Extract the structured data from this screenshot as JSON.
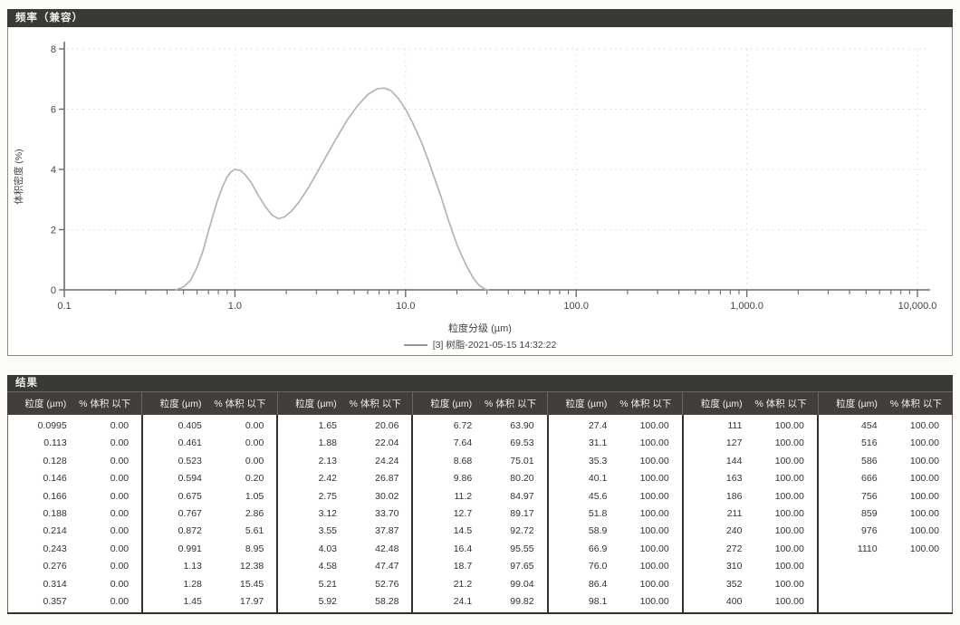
{
  "chart_panel": {
    "title": "频率（兼容）",
    "ylabel": "体积密度 (%)",
    "xlabel": "粒度分级 (µm)",
    "legend": "[3] 树脂-2021-05-15 14:32:22"
  },
  "chart_data": {
    "type": "line",
    "x_scale": "log",
    "title": "频率（兼容）",
    "xlabel": "粒度分级 (µm)",
    "ylabel": "体积密度 (%)",
    "xlim": [
      0.1,
      10000
    ],
    "ylim": [
      0,
      8
    ],
    "y_ticks": [
      0,
      2,
      4,
      6,
      8
    ],
    "x_ticks": [
      0.1,
      1.0,
      10.0,
      100.0,
      1000.0,
      10000.0
    ],
    "x_tick_labels": [
      "0.1",
      "1.0",
      "10.0",
      "100.0",
      "1,000.0",
      "10,000.0"
    ],
    "grid": "dashed",
    "legend_position": "bottom",
    "series": [
      {
        "name": "[3] 树脂-2021-05-15 14:32:22",
        "points": [
          [
            0.45,
            0
          ],
          [
            0.5,
            0.1
          ],
          [
            0.55,
            0.32
          ],
          [
            0.6,
            0.75
          ],
          [
            0.65,
            1.3
          ],
          [
            0.7,
            1.95
          ],
          [
            0.75,
            2.55
          ],
          [
            0.8,
            3.05
          ],
          [
            0.85,
            3.45
          ],
          [
            0.9,
            3.75
          ],
          [
            0.95,
            3.92
          ],
          [
            1.0,
            4.0
          ],
          [
            1.08,
            3.96
          ],
          [
            1.15,
            3.82
          ],
          [
            1.25,
            3.55
          ],
          [
            1.35,
            3.2
          ],
          [
            1.5,
            2.78
          ],
          [
            1.65,
            2.48
          ],
          [
            1.8,
            2.36
          ],
          [
            1.95,
            2.42
          ],
          [
            2.15,
            2.62
          ],
          [
            2.4,
            2.95
          ],
          [
            2.7,
            3.4
          ],
          [
            3.0,
            3.85
          ],
          [
            3.4,
            4.4
          ],
          [
            3.9,
            5.0
          ],
          [
            4.5,
            5.6
          ],
          [
            5.2,
            6.1
          ],
          [
            6.0,
            6.48
          ],
          [
            6.8,
            6.67
          ],
          [
            7.5,
            6.7
          ],
          [
            8.2,
            6.62
          ],
          [
            9.0,
            6.38
          ],
          [
            10.0,
            6.0
          ],
          [
            11.0,
            5.55
          ],
          [
            12.5,
            4.85
          ],
          [
            14.0,
            4.1
          ],
          [
            16.0,
            3.15
          ],
          [
            18.0,
            2.25
          ],
          [
            20.0,
            1.5
          ],
          [
            22.5,
            0.85
          ],
          [
            25.0,
            0.38
          ],
          [
            27.0,
            0.15
          ],
          [
            29.0,
            0.03
          ],
          [
            30.5,
            0.0
          ]
        ]
      }
    ]
  },
  "results_table": {
    "title": "结果",
    "size_header": "粒度 (µm)",
    "pct_header": "% 体积 以下",
    "groups": [
      {
        "rows": [
          [
            "0.0995",
            "0.00"
          ],
          [
            "0.113",
            "0.00"
          ],
          [
            "0.128",
            "0.00"
          ],
          [
            "0.146",
            "0.00"
          ],
          [
            "0.166",
            "0.00"
          ],
          [
            "0.188",
            "0.00"
          ],
          [
            "0.214",
            "0.00"
          ],
          [
            "0.243",
            "0.00"
          ],
          [
            "0.276",
            "0.00"
          ],
          [
            "0.314",
            "0.00"
          ],
          [
            "0.357",
            "0.00"
          ]
        ]
      },
      {
        "rows": [
          [
            "0.405",
            "0.00"
          ],
          [
            "0.461",
            "0.00"
          ],
          [
            "0.523",
            "0.00"
          ],
          [
            "0.594",
            "0.20"
          ],
          [
            "0.675",
            "1.05"
          ],
          [
            "0.767",
            "2.86"
          ],
          [
            "0.872",
            "5.61"
          ],
          [
            "0.991",
            "8.95"
          ],
          [
            "1.13",
            "12.38"
          ],
          [
            "1.28",
            "15.45"
          ],
          [
            "1.45",
            "17.97"
          ]
        ]
      },
      {
        "rows": [
          [
            "1.65",
            "20.06"
          ],
          [
            "1.88",
            "22.04"
          ],
          [
            "2.13",
            "24.24"
          ],
          [
            "2.42",
            "26.87"
          ],
          [
            "2.75",
            "30.02"
          ],
          [
            "3.12",
            "33.70"
          ],
          [
            "3.55",
            "37.87"
          ],
          [
            "4.03",
            "42.48"
          ],
          [
            "4.58",
            "47.47"
          ],
          [
            "5.21",
            "52.76"
          ],
          [
            "5.92",
            "58.28"
          ]
        ]
      },
      {
        "rows": [
          [
            "6.72",
            "63.90"
          ],
          [
            "7.64",
            "69.53"
          ],
          [
            "8.68",
            "75.01"
          ],
          [
            "9.86",
            "80.20"
          ],
          [
            "11.2",
            "84.97"
          ],
          [
            "12.7",
            "89.17"
          ],
          [
            "14.5",
            "92.72"
          ],
          [
            "16.4",
            "95.55"
          ],
          [
            "18.7",
            "97.65"
          ],
          [
            "21.2",
            "99.04"
          ],
          [
            "24.1",
            "99.82"
          ]
        ]
      },
      {
        "rows": [
          [
            "27.4",
            "100.00"
          ],
          [
            "31.1",
            "100.00"
          ],
          [
            "35.3",
            "100.00"
          ],
          [
            "40.1",
            "100.00"
          ],
          [
            "45.6",
            "100.00"
          ],
          [
            "51.8",
            "100.00"
          ],
          [
            "58.9",
            "100.00"
          ],
          [
            "66.9",
            "100.00"
          ],
          [
            "76.0",
            "100.00"
          ],
          [
            "86.4",
            "100.00"
          ],
          [
            "98.1",
            "100.00"
          ]
        ]
      },
      {
        "rows": [
          [
            "111",
            "100.00"
          ],
          [
            "127",
            "100.00"
          ],
          [
            "144",
            "100.00"
          ],
          [
            "163",
            "100.00"
          ],
          [
            "186",
            "100.00"
          ],
          [
            "211",
            "100.00"
          ],
          [
            "240",
            "100.00"
          ],
          [
            "272",
            "100.00"
          ],
          [
            "310",
            "100.00"
          ],
          [
            "352",
            "100.00"
          ],
          [
            "400",
            "100.00"
          ]
        ]
      },
      {
        "rows": [
          [
            "454",
            "100.00"
          ],
          [
            "516",
            "100.00"
          ],
          [
            "586",
            "100.00"
          ],
          [
            "666",
            "100.00"
          ],
          [
            "756",
            "100.00"
          ],
          [
            "859",
            "100.00"
          ],
          [
            "976",
            "100.00"
          ],
          [
            "1110",
            "100.00"
          ]
        ]
      }
    ]
  },
  "colors": {
    "titlebar_bg": "#3b3936",
    "header_bg": "#413e3b",
    "curve": "#adb8b0",
    "grid": "#e4e2d9",
    "axis": "#6e6b64",
    "text_axis": "#45433e",
    "divider_dark": "#34312d"
  }
}
